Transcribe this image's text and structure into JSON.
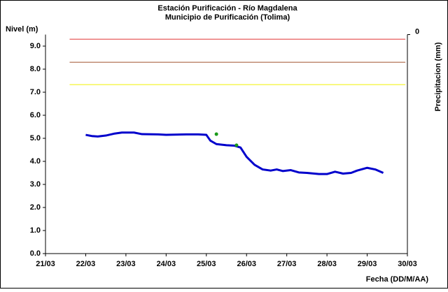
{
  "chart_data": {
    "type": "line",
    "title": "Estación Purificación - Río Magdalena",
    "subtitle": "Municipio de Purificación (Tolima)",
    "y_label": "Nivel (m)",
    "x_label": "Fecha (DD/M/AA)",
    "y2_label": "Precipitacion (mm)",
    "xlim": [
      21,
      30
    ],
    "xticks": [
      {
        "value": 21,
        "label": "21/03"
      },
      {
        "value": 22,
        "label": "22/03"
      },
      {
        "value": 23,
        "label": "23/03"
      },
      {
        "value": 24,
        "label": "24/03"
      },
      {
        "value": 25,
        "label": "25/03"
      },
      {
        "value": 26,
        "label": "26/03"
      },
      {
        "value": 27,
        "label": "27/03"
      },
      {
        "value": 28,
        "label": "28/03"
      },
      {
        "value": 29,
        "label": "29/03"
      },
      {
        "value": 30,
        "label": "30/03"
      }
    ],
    "ylim": [
      0,
      9.5
    ],
    "yticks": [
      {
        "value": 0,
        "label": "0.0"
      },
      {
        "value": 1,
        "label": "1.0"
      },
      {
        "value": 2,
        "label": "2.0"
      },
      {
        "value": 3,
        "label": "3.0"
      },
      {
        "value": 4,
        "label": "4.0"
      },
      {
        "value": 5,
        "label": "5.0"
      },
      {
        "value": 6,
        "label": "6.0"
      },
      {
        "value": 7,
        "label": "7.0"
      },
      {
        "value": 8,
        "label": "8.0"
      },
      {
        "value": 9,
        "label": "9.0"
      }
    ],
    "y2lim": [
      10,
      0
    ],
    "y2ticks": [
      0
    ],
    "series": [
      {
        "color": "#e03030",
        "x": [
          21.6,
          29.95
        ],
        "values": [
          9.3,
          9.3
        ],
        "width": 1
      },
      {
        "color": "#a0522d",
        "x": [
          21.6,
          29.95
        ],
        "values": [
          8.3,
          8.3
        ],
        "width": 1
      },
      {
        "color": "#f0f000",
        "x": [
          21.6,
          29.95
        ],
        "values": [
          7.33,
          7.33
        ],
        "width": 1
      },
      {
        "color": "#0000cc",
        "width": 3,
        "x": [
          22.0,
          22.15,
          22.3,
          22.5,
          22.7,
          22.9,
          23.2,
          23.4,
          23.8,
          24.0,
          24.2,
          24.5,
          24.8,
          25.0,
          25.1,
          25.25,
          25.5,
          25.7,
          25.85,
          26.0,
          26.2,
          26.4,
          26.6,
          26.75,
          26.9,
          27.1,
          27.3,
          27.5,
          27.8,
          28.0,
          28.2,
          28.4,
          28.6,
          28.75,
          29.0,
          29.2,
          29.4
        ],
        "values": [
          5.15,
          5.1,
          5.08,
          5.12,
          5.2,
          5.25,
          5.25,
          5.18,
          5.17,
          5.15,
          5.16,
          5.17,
          5.17,
          5.15,
          4.9,
          4.75,
          4.7,
          4.68,
          4.6,
          4.2,
          3.85,
          3.65,
          3.6,
          3.65,
          3.58,
          3.62,
          3.52,
          3.5,
          3.45,
          3.45,
          3.55,
          3.47,
          3.5,
          3.6,
          3.72,
          3.65,
          3.5
        ]
      },
      {
        "color": "#1a9a1a",
        "scatter": true,
        "x": [
          25.25,
          25.75
        ],
        "values": [
          5.18,
          4.7
        ]
      }
    ]
  }
}
